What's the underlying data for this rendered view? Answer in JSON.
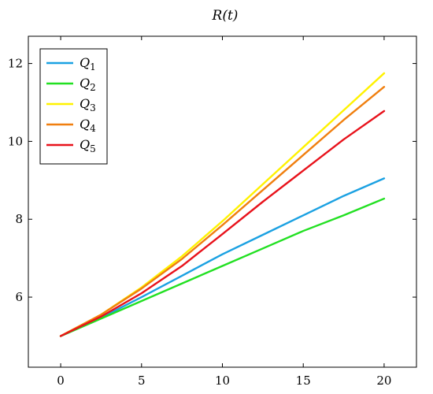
{
  "chart_data": {
    "type": "line",
    "title": "R(t)",
    "xlabel": "",
    "ylabel": "",
    "xlim": [
      -2,
      22
    ],
    "ylim": [
      4.2,
      12.7
    ],
    "x_ticks": [
      0,
      5,
      10,
      15,
      20
    ],
    "y_ticks": [
      6,
      8,
      10,
      12
    ],
    "grid": false,
    "legend_position": "top-left",
    "series": [
      {
        "name": "Q1",
        "color": "#1ba1e2",
        "x": [
          0,
          2.5,
          5,
          7.5,
          10,
          12.5,
          15,
          17.5,
          20
        ],
        "y": [
          5.0,
          5.47,
          6.0,
          6.55,
          7.1,
          7.6,
          8.1,
          8.6,
          9.05
        ]
      },
      {
        "name": "Q2",
        "color": "#22e022",
        "x": [
          0,
          2.5,
          5,
          7.5,
          10,
          12.5,
          15,
          17.5,
          20
        ],
        "y": [
          5.0,
          5.45,
          5.9,
          6.35,
          6.8,
          7.25,
          7.7,
          8.1,
          8.53
        ]
      },
      {
        "name": "Q3",
        "color": "#fff200",
        "x": [
          0,
          2.5,
          5,
          7.5,
          10,
          12.5,
          15,
          17.5,
          20
        ],
        "y": [
          5.0,
          5.55,
          6.25,
          7.05,
          7.95,
          8.9,
          9.85,
          10.8,
          11.75
        ]
      },
      {
        "name": "Q4",
        "color": "#f07f0f",
        "x": [
          0,
          2.5,
          5,
          7.5,
          10,
          12.5,
          15,
          17.5,
          20
        ],
        "y": [
          5.0,
          5.55,
          6.22,
          6.98,
          7.85,
          8.75,
          9.65,
          10.55,
          11.4
        ]
      },
      {
        "name": "Q5",
        "color": "#e8121b",
        "x": [
          0,
          2.5,
          5,
          7.5,
          10,
          12.5,
          15,
          17.5,
          20
        ],
        "y": [
          5.0,
          5.5,
          6.1,
          6.8,
          7.62,
          8.45,
          9.25,
          10.05,
          10.78
        ]
      }
    ]
  }
}
